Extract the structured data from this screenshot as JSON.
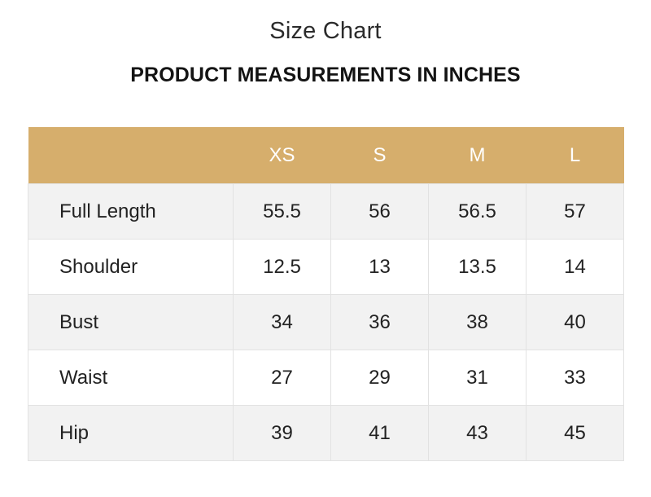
{
  "title": "Size Chart",
  "subtitle": "PRODUCT MEASUREMENTS IN INCHES",
  "table": {
    "header": [
      "",
      "XS",
      "S",
      "M",
      "L"
    ],
    "rows": [
      {
        "label": "Full Length",
        "values": [
          "55.5",
          "56",
          "56.5",
          "57"
        ]
      },
      {
        "label": "Shoulder",
        "values": [
          "12.5",
          "13",
          "13.5",
          "14"
        ]
      },
      {
        "label": "Bust",
        "values": [
          "34",
          "36",
          "38",
          "40"
        ]
      },
      {
        "label": "Waist",
        "values": [
          "27",
          "29",
          "31",
          "33"
        ]
      },
      {
        "label": "Hip",
        "values": [
          "39",
          "41",
          "43",
          "45"
        ]
      }
    ]
  },
  "colors": {
    "header_background": "#d6ae6c",
    "header_text": "#ffffff",
    "row_shade": "#f2f2f2"
  }
}
